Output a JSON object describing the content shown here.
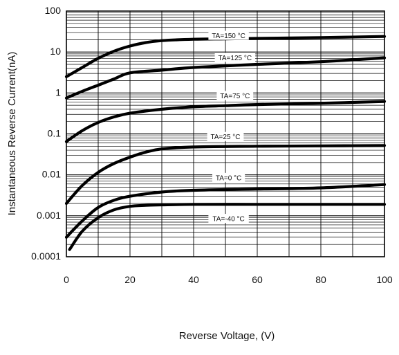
{
  "chart_data": {
    "type": "line",
    "xlabel": "Reverse Voltage, (V)",
    "ylabel": "Instantaneous Reverse Current(nA)",
    "y_scale": "log",
    "xlim": [
      0,
      100
    ],
    "ylim": [
      0.0001,
      100
    ],
    "grid": true,
    "x_ticks": [
      {
        "value": 0,
        "label": "0"
      },
      {
        "value": 20,
        "label": "20"
      },
      {
        "value": 40,
        "label": "40"
      },
      {
        "value": 60,
        "label": "60"
      },
      {
        "value": 80,
        "label": "80"
      },
      {
        "value": 100,
        "label": "100"
      }
    ],
    "y_ticks": [
      {
        "value": 0.0001,
        "label": "0.0001"
      },
      {
        "value": 0.001,
        "label": "0.001"
      },
      {
        "value": 0.01,
        "label": "0.01"
      },
      {
        "value": 0.1,
        "label": "0.1"
      },
      {
        "value": 1,
        "label": "1"
      },
      {
        "value": 10,
        "label": "10"
      },
      {
        "value": 100,
        "label": "100"
      }
    ],
    "series": [
      {
        "label": "TA=150 °C",
        "label_at": {
          "x": 51,
          "y": 25
        },
        "x": [
          0,
          5,
          10,
          15,
          20,
          25,
          30,
          40,
          50,
          60,
          80,
          100
        ],
        "y": [
          2.5,
          4.2,
          7,
          10.5,
          14,
          17,
          19,
          20.5,
          21,
          21.5,
          22.5,
          24
        ]
      },
      {
        "label": "TA=125 °C",
        "label_at": {
          "x": 53,
          "y": 7.3
        },
        "x": [
          0,
          5,
          10,
          15,
          20,
          30,
          40,
          60,
          80,
          100
        ],
        "y": [
          0.75,
          1.1,
          1.55,
          2.2,
          3.1,
          3.6,
          4.2,
          5,
          5.8,
          7.2
        ]
      },
      {
        "label": "TA=75 °C",
        "label_at": {
          "x": 53,
          "y": 0.85
        },
        "x": [
          0,
          5,
          10,
          15,
          20,
          30,
          40,
          50,
          60,
          80,
          100
        ],
        "y": [
          0.065,
          0.12,
          0.19,
          0.26,
          0.32,
          0.4,
          0.46,
          0.49,
          0.52,
          0.56,
          0.62
        ]
      },
      {
        "label": "TA=25 °C",
        "label_at": {
          "x": 50,
          "y": 0.085
        },
        "x": [
          0,
          5,
          10,
          15,
          20,
          25,
          30,
          40,
          60,
          80,
          100
        ],
        "y": [
          0.002,
          0.0055,
          0.0115,
          0.019,
          0.027,
          0.036,
          0.043,
          0.048,
          0.05,
          0.051,
          0.052
        ]
      },
      {
        "label": "TA=0 °C",
        "label_at": {
          "x": 51,
          "y": 0.0085
        },
        "x": [
          0,
          5,
          10,
          15,
          20,
          30,
          40,
          60,
          80,
          100
        ],
        "y": [
          0.0003,
          0.00075,
          0.0016,
          0.0024,
          0.003,
          0.0038,
          0.0042,
          0.0045,
          0.0048,
          0.0058
        ]
      },
      {
        "label": "TA=-40 °C",
        "label_at": {
          "x": 51,
          "y": 0.00085
        },
        "x": [
          1,
          5,
          10,
          15,
          20,
          25,
          30,
          40,
          60,
          80,
          100
        ],
        "y": [
          0.00015,
          0.00042,
          0.0009,
          0.0014,
          0.0017,
          0.0018,
          0.00185,
          0.0019,
          0.0019,
          0.0019,
          0.0019
        ]
      }
    ]
  }
}
